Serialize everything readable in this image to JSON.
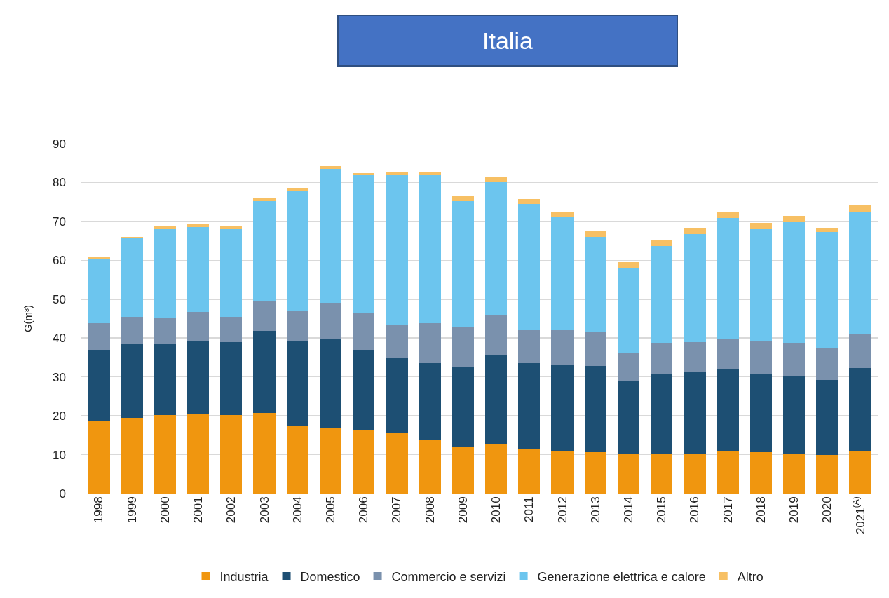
{
  "chart_data": {
    "type": "bar",
    "title": "Italia",
    "ylabel": "G(m³)",
    "stacked": true,
    "grid": "y",
    "legend": "bottom",
    "categories": [
      "1998",
      "1999",
      "2000",
      "2001",
      "2002",
      "2003",
      "2004",
      "2005",
      "2006",
      "2007",
      "2008",
      "2009",
      "2010",
      "2011",
      "2012",
      "2013",
      "2014",
      "2015",
      "2016",
      "2017",
      "2018",
      "2019",
      "2020",
      "2021$^{(A)}$"
    ],
    "ylim": [
      0,
      90
    ],
    "yticks": [
      0,
      10,
      20,
      30,
      40,
      50,
      60,
      70,
      80,
      90
    ],
    "series": [
      {
        "name": "Industria",
        "color": "#f0960f",
        "values": [
          18.7,
          19.4,
          20.2,
          20.3,
          20.2,
          20.7,
          17.5,
          16.8,
          16.3,
          15.5,
          13.8,
          12.0,
          12.6,
          11.4,
          10.9,
          10.6,
          10.3,
          10.1,
          10.1,
          10.8,
          10.6,
          10.3,
          9.9,
          10.8
        ]
      },
      {
        "name": "Domestico",
        "color": "#1d4f73",
        "values": [
          18.3,
          19.0,
          18.4,
          19.1,
          18.7,
          21.2,
          21.9,
          23.1,
          20.7,
          19.3,
          19.7,
          20.6,
          22.9,
          22.1,
          22.3,
          22.2,
          18.5,
          20.7,
          21.1,
          21.2,
          20.2,
          19.8,
          19.4,
          21.5
        ]
      },
      {
        "name": "Commercio e servizi",
        "color": "#7a91ad",
        "values": [
          6.8,
          7.1,
          6.7,
          7.4,
          6.6,
          7.5,
          7.6,
          9.1,
          9.3,
          8.7,
          10.3,
          10.4,
          10.5,
          8.6,
          8.8,
          8.8,
          7.4,
          8.0,
          7.8,
          7.8,
          8.5,
          8.7,
          8.0,
          8.7
        ]
      },
      {
        "name": "Generazione elettrica e calore",
        "color": "#6cc5ee",
        "values": [
          16.4,
          20.1,
          22.9,
          21.8,
          22.7,
          25.8,
          30.9,
          34.5,
          35.5,
          38.4,
          38.0,
          32.4,
          34.1,
          32.3,
          29.2,
          24.5,
          21.9,
          24.9,
          27.8,
          31.0,
          28.9,
          31.0,
          29.9,
          31.5
        ]
      },
      {
        "name": "Altro",
        "color": "#f7c064",
        "values": [
          0.6,
          0.4,
          0.7,
          0.7,
          0.7,
          0.7,
          0.7,
          0.8,
          0.7,
          0.8,
          0.9,
          1.1,
          1.2,
          1.4,
          1.3,
          1.6,
          1.5,
          1.5,
          1.6,
          1.5,
          1.5,
          1.7,
          1.2,
          1.6
        ]
      }
    ]
  }
}
